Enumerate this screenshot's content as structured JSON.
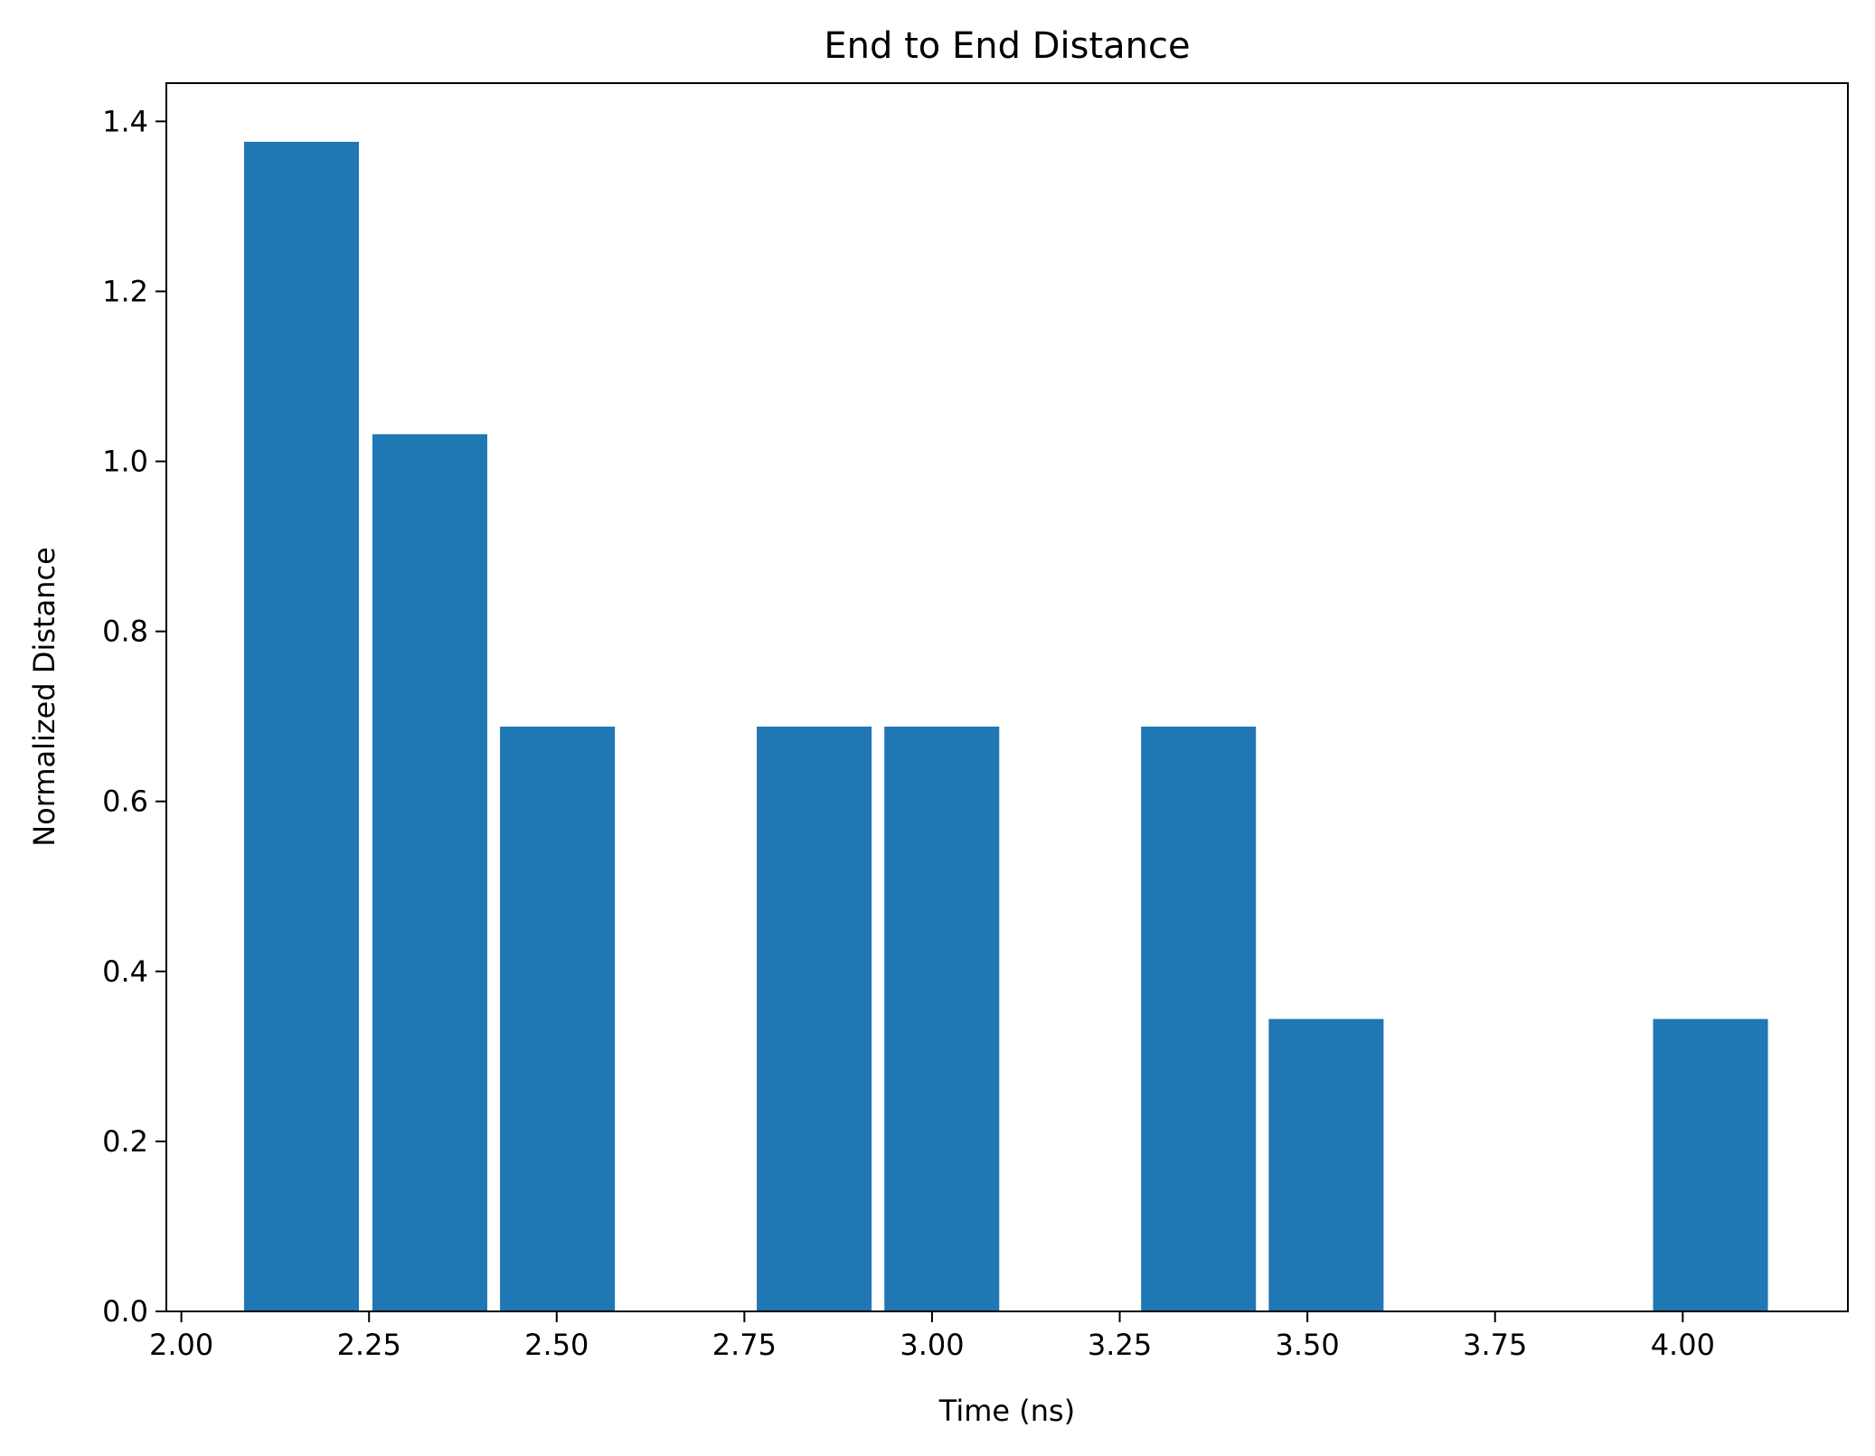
{
  "chart_data": {
    "type": "bar",
    "title": "End to End Distance",
    "xlabel": "Time (ns)",
    "ylabel": "Normalized Distance",
    "xlim": [
      1.98,
      4.22
    ],
    "ylim": [
      0.0,
      1.445
    ],
    "bar_width": 0.153,
    "bar_color": "#1f77b4",
    "x_ticks": [
      2.0,
      2.25,
      2.5,
      2.75,
      3.0,
      3.25,
      3.5,
      3.75,
      4.0
    ],
    "x_tick_labels": [
      "2.00",
      "2.25",
      "2.50",
      "2.75",
      "3.00",
      "3.25",
      "3.50",
      "3.75",
      "4.00"
    ],
    "y_ticks": [
      0.0,
      0.2,
      0.4,
      0.6,
      0.8,
      1.0,
      1.2,
      1.4
    ],
    "y_tick_labels": [
      "0.0",
      "0.2",
      "0.4",
      "0.6",
      "0.8",
      "1.0",
      "1.2",
      "1.4"
    ],
    "bars": [
      {
        "x": 2.16,
        "value": 1.376
      },
      {
        "x": 2.331,
        "value": 1.032
      },
      {
        "x": 2.501,
        "value": 0.688
      },
      {
        "x": 2.843,
        "value": 0.688
      },
      {
        "x": 3.013,
        "value": 0.688
      },
      {
        "x": 3.355,
        "value": 0.688
      },
      {
        "x": 3.525,
        "value": 0.344
      },
      {
        "x": 4.037,
        "value": 0.344
      }
    ],
    "grid": false,
    "legend": "none"
  }
}
